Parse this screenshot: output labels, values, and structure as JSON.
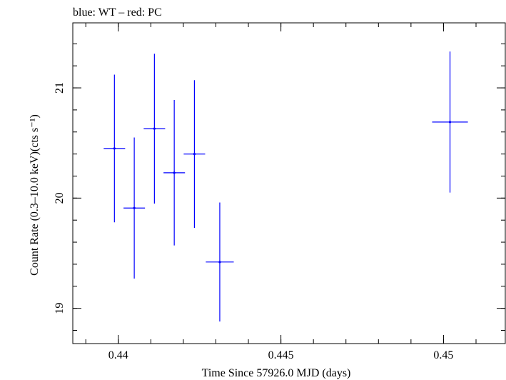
{
  "chart_data": {
    "type": "scatter",
    "title": "blue: WT – red: PC",
    "xlabel": "Time Since 57926.0 MJD (days)",
    "ylabel": "Count Rate (0.3–10.0 keV)(cts s⁻¹)",
    "xlim": [
      0.4386,
      0.4519
    ],
    "ylim": [
      18.68,
      21.59
    ],
    "xticks": [
      {
        "value": 0.44,
        "label": "0.44"
      },
      {
        "value": 0.445,
        "label": "0.445"
      },
      {
        "value": 0.45,
        "label": "0.45"
      }
    ],
    "yticks": [
      {
        "value": 19,
        "label": "19"
      },
      {
        "value": 20,
        "label": "20"
      },
      {
        "value": 21,
        "label": "21"
      }
    ],
    "x_minor_step": 0.001,
    "y_minor_step": 0.2,
    "series": [
      {
        "name": "WT",
        "color": "#0000ff",
        "points": [
          {
            "x": 0.43988,
            "xerr": 0.00033,
            "y": 20.45,
            "yerr": 0.67
          },
          {
            "x": 0.44049,
            "xerr": 0.00033,
            "y": 19.91,
            "yerr": 0.64
          },
          {
            "x": 0.44111,
            "xerr": 0.00033,
            "y": 20.63,
            "yerr": 0.68
          },
          {
            "x": 0.44172,
            "xerr": 0.00033,
            "y": 20.23,
            "yerr": 0.66
          },
          {
            "x": 0.44234,
            "xerr": 0.00033,
            "y": 20.4,
            "yerr": 0.67
          },
          {
            "x": 0.44312,
            "xerr": 0.00043,
            "y": 19.42,
            "yerr": 0.54
          },
          {
            "x": 0.4502,
            "xerr": 0.00055,
            "y": 20.69,
            "yerr": 0.64
          }
        ]
      }
    ]
  }
}
